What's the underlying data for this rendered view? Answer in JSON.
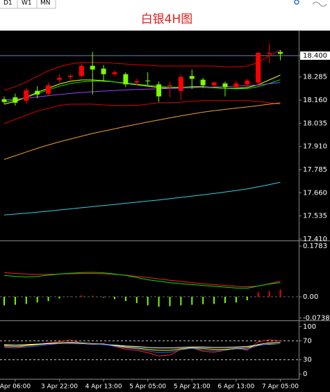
{
  "toolbar": {
    "tabs": [
      "D1",
      "W1",
      "MN"
    ]
  },
  "chart_data": [
    {
      "type": "candlestick",
      "title": "白银4H图",
      "categories": [
        null,
        "Apr 06:00",
        null,
        null,
        null,
        "3 Apr 22:00",
        null,
        null,
        null,
        "4 Apr 13:00",
        null,
        null,
        null,
        "5 Apr 05:00",
        null,
        null,
        null,
        "5 Apr 21:00",
        null,
        null,
        null,
        "6 Apr 13:00",
        null,
        null,
        null,
        "7 Apr 05:00"
      ],
      "open": [
        18.165,
        18.175,
        18.157,
        18.21,
        18.195,
        18.27,
        18.285,
        18.29,
        18.345,
        18.33,
        18.3,
        18.3,
        18.255,
        18.265,
        18.245,
        18.235,
        18.21,
        18.29,
        18.27,
        18.24,
        18.25,
        18.23,
        18.245,
        18.255,
        18.41,
        18.42
      ],
      "high": [
        18.18,
        18.195,
        18.225,
        18.235,
        18.255,
        18.3,
        18.3,
        18.36,
        18.42,
        18.35,
        18.32,
        18.31,
        18.275,
        18.31,
        18.26,
        18.26,
        18.3,
        18.325,
        18.28,
        18.26,
        18.26,
        18.265,
        18.275,
        18.42,
        18.465,
        18.43
      ],
      "low": [
        18.14,
        18.13,
        18.14,
        18.17,
        18.18,
        18.255,
        18.27,
        18.28,
        18.19,
        18.26,
        18.29,
        18.23,
        18.24,
        18.24,
        18.15,
        18.175,
        18.16,
        18.22,
        18.225,
        18.23,
        18.18,
        18.225,
        18.23,
        18.235,
        18.36,
        18.375
      ],
      "close": [
        18.15,
        18.146,
        18.213,
        18.19,
        18.24,
        18.28,
        18.292,
        18.345,
        18.325,
        18.3,
        18.31,
        18.245,
        18.262,
        18.262,
        18.18,
        18.24,
        18.285,
        18.275,
        18.24,
        18.255,
        18.23,
        18.25,
        18.265,
        18.415,
        18.415,
        18.41
      ],
      "up_color": "#ff0000",
      "down_color": "#7cfc00",
      "lines": [
        {
          "color": "#e00000",
          "values": [
            18.213,
            18.232,
            18.258,
            18.288,
            18.318,
            18.34,
            18.355,
            18.363,
            18.363,
            18.363,
            18.359,
            18.355,
            18.351,
            18.348,
            18.344,
            18.344,
            18.344,
            18.344,
            18.344,
            18.344,
            18.34,
            18.34,
            18.344,
            18.363,
            18.4,
            18.43
          ]
        },
        {
          "color": "#e00000",
          "values": [
            18.033,
            18.056,
            18.078,
            18.101,
            18.116,
            18.131,
            18.138,
            18.138,
            18.138,
            18.134,
            18.131,
            18.131,
            18.131,
            18.138,
            18.146,
            18.146,
            18.149,
            18.153,
            18.157,
            18.157,
            18.157,
            18.157,
            18.157,
            18.153,
            18.146,
            18.138
          ]
        },
        {
          "color": "#ffff00",
          "values": [
            18.138,
            18.153,
            18.175,
            18.202,
            18.224,
            18.247,
            18.262,
            18.269,
            18.269,
            18.265,
            18.258,
            18.25,
            18.243,
            18.235,
            18.228,
            18.224,
            18.228,
            18.232,
            18.232,
            18.228,
            18.224,
            18.224,
            18.228,
            18.243,
            18.269,
            18.295
          ]
        },
        {
          "color": "#00e000",
          "values": [
            18.15,
            18.16,
            18.175,
            18.195,
            18.215,
            18.235,
            18.25,
            18.258,
            18.262,
            18.262,
            18.258,
            18.252,
            18.246,
            18.24,
            18.234,
            18.23,
            18.23,
            18.23,
            18.229,
            18.226,
            18.223,
            18.221,
            18.222,
            18.232,
            18.25,
            18.27
          ]
        },
        {
          "color": "#9a40ff",
          "values": [
            18.16,
            18.165,
            18.17,
            18.177,
            18.184,
            18.19,
            18.196,
            18.201,
            18.205,
            18.209,
            18.212,
            18.215,
            18.217,
            18.219,
            18.221,
            18.223,
            18.225,
            18.227,
            18.229,
            18.231,
            18.233,
            18.235,
            18.238,
            18.242,
            18.248,
            18.255
          ]
        },
        {
          "color": "#f0a030",
          "values": [
            17.84,
            17.86,
            17.88,
            17.9,
            17.918,
            17.935,
            17.95,
            17.965,
            17.98,
            17.993,
            18.005,
            18.018,
            18.03,
            18.042,
            18.053,
            18.064,
            18.075,
            18.085,
            18.095,
            18.103,
            18.11,
            18.117,
            18.123,
            18.13,
            18.138,
            18.145
          ]
        },
        {
          "color": "#30d0e0",
          "values": [
            17.54,
            17.545,
            17.55,
            17.555,
            17.561,
            17.567,
            17.573,
            17.579,
            17.585,
            17.591,
            17.597,
            17.603,
            17.609,
            17.615,
            17.621,
            17.628,
            17.635,
            17.642,
            17.649,
            17.656,
            17.664,
            17.672,
            17.681,
            17.692,
            17.704,
            17.717
          ]
        }
      ],
      "price_line": 18.4,
      "price_line_color": "#6f7fb0",
      "ylim": [
        17.41,
        18.524
      ],
      "yticks": [
        {
          "value": 18.4,
          "label": "18.400"
        },
        18.285,
        {
          "value": 18.16,
          "label": "18.160"
        },
        18.035,
        {
          "value": 17.91,
          "label": "17.910"
        },
        17.785,
        {
          "value": 17.66,
          "label": "17.660"
        },
        17.535,
        {
          "value": 17.41,
          "label": "17.410"
        }
      ]
    },
    {
      "type": "macd",
      "histogram": [
        -0.03,
        -0.028,
        -0.025,
        -0.02,
        -0.015,
        -0.006,
        0.002,
        0.005,
        0.004,
        -0.002,
        -0.008,
        -0.015,
        -0.022,
        -0.03,
        -0.035,
        -0.033,
        -0.03,
        -0.028,
        -0.026,
        -0.025,
        -0.022,
        -0.02,
        -0.012,
        0.015,
        0.02,
        0.025
      ],
      "up_color": "#ff0000",
      "down_color": "#7cfc00",
      "lines": [
        {
          "color": "#ff2020",
          "values": [
            0.085,
            0.082,
            0.08,
            0.079,
            0.079,
            0.08,
            0.081,
            0.082,
            0.082,
            0.081,
            0.079,
            0.076,
            0.072,
            0.068,
            0.063,
            0.058,
            0.054,
            0.05,
            0.046,
            0.043,
            0.04,
            0.037,
            0.035,
            0.038,
            0.046,
            0.055
          ]
        },
        {
          "color": "#00e000",
          "values": [
            0.075,
            0.072,
            0.07,
            0.072,
            0.076,
            0.08,
            0.083,
            0.085,
            0.086,
            0.084,
            0.08,
            0.075,
            0.068,
            0.06,
            0.055,
            0.05,
            0.046,
            0.043,
            0.04,
            0.037,
            0.034,
            0.031,
            0.03,
            0.038,
            0.045,
            0.05
          ]
        }
      ],
      "ylim": [
        -0.078,
        0.193
      ],
      "yticks": [
        0.1783,
        {
          "value": 0,
          "label": "0.00"
        },
        -0.0738
      ]
    },
    {
      "type": "line",
      "series": [
        {
          "color": "#ff2020",
          "values": [
            58,
            55,
            60,
            62,
            66,
            68,
            72,
            65,
            62,
            64,
            58,
            52,
            50,
            45,
            38,
            40,
            52,
            55,
            48,
            46,
            50,
            55,
            50,
            68,
            72,
            70
          ]
        },
        {
          "color": "#ffff00",
          "values": [
            60,
            58,
            60,
            62,
            64,
            66,
            67,
            66,
            64,
            63,
            60,
            57,
            55,
            52,
            50,
            50,
            53,
            55,
            54,
            52,
            52,
            54,
            55,
            62,
            66,
            67
          ]
        },
        {
          "color": "#ffffff",
          "values": [
            62,
            61,
            62,
            63,
            64,
            64,
            65,
            64,
            63,
            62,
            61,
            59,
            58,
            56,
            55,
            55,
            56,
            57,
            57,
            56,
            56,
            57,
            58,
            61,
            63,
            64
          ]
        },
        {
          "color": "#3060ff",
          "values": [
            56,
            55,
            57,
            59,
            62,
            64,
            66,
            65,
            63,
            62,
            59,
            55,
            53,
            49,
            45,
            46,
            51,
            54,
            51,
            49,
            50,
            53,
            52,
            60,
            64,
            64
          ]
        }
      ],
      "level_lines": true,
      "ylim": [
        -10,
        110
      ],
      "yticks": [
        100,
        70,
        30,
        0
      ]
    }
  ]
}
